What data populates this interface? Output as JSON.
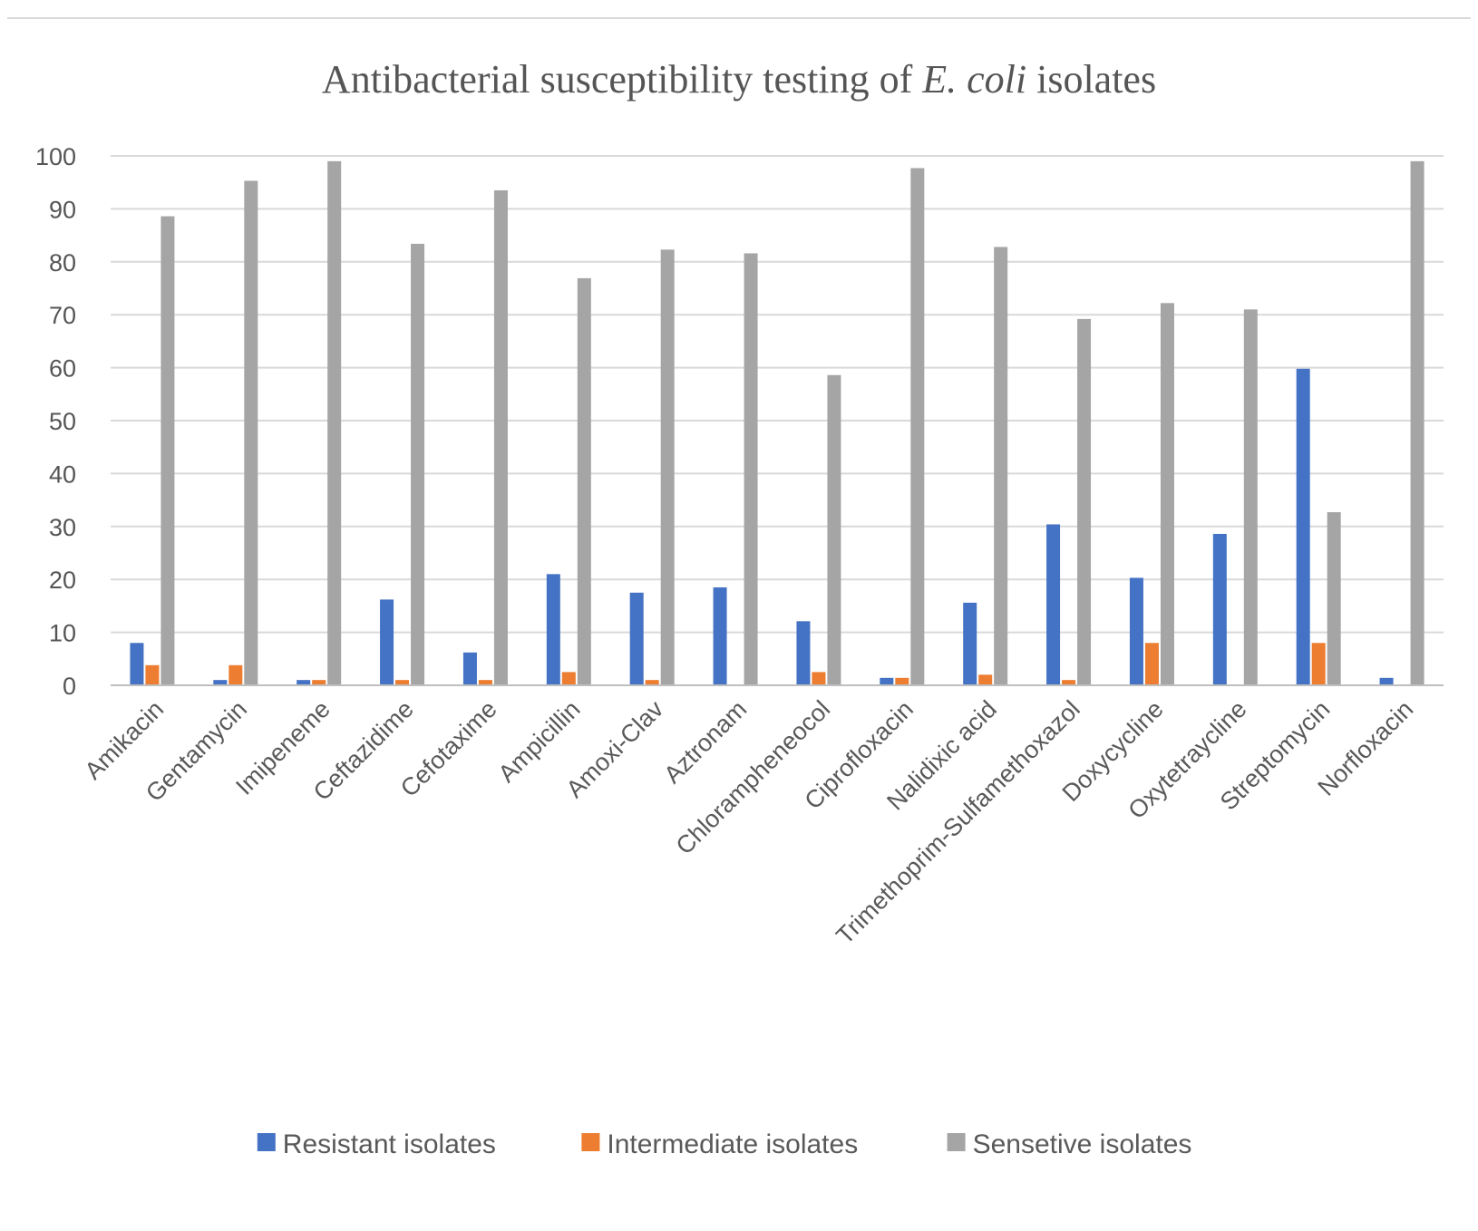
{
  "chart_data": {
    "type": "bar",
    "title": "Antibacterial susceptibility testing of ",
    "title_italic": "E. coli",
    "title_suffix": " isolates",
    "xlabel": "",
    "ylabel": "",
    "ylim": [
      0,
      100
    ],
    "yticks": [
      0,
      10,
      20,
      30,
      40,
      50,
      60,
      70,
      80,
      90,
      100
    ],
    "grid": true,
    "legend_position": "bottom",
    "categories": [
      "Amikacin",
      "Gentamycin",
      "Imipeneme",
      "Ceftazidime",
      "Cefotaxime",
      "Ampicillin",
      "Amoxi-Clav",
      "Aztronam",
      "Chlorampheneocol",
      "Ciprofloxacin",
      "Nalidixic acid",
      "Trimethoprim-Sulfamethoxazol",
      "Doxycycline",
      "Oxytetraycline",
      "Streptomycin",
      "Norfloxacin"
    ],
    "series": [
      {
        "name": "Resistant isolates",
        "color": "#4472C4",
        "values": [
          8,
          1,
          1,
          16.2,
          6.2,
          21,
          17.5,
          18.5,
          12.1,
          1.4,
          15.6,
          30.4,
          20.3,
          28.6,
          59.8,
          1.4
        ]
      },
      {
        "name": "Intermediate isolates",
        "color": "#ED7D31",
        "values": [
          3.8,
          3.8,
          1,
          1,
          1,
          2.5,
          1,
          0,
          2.5,
          1.4,
          2,
          1,
          8,
          0,
          8,
          0
        ]
      },
      {
        "name": "Sensetive isolates",
        "color": "#A5A5A5",
        "values": [
          88.6,
          95.3,
          99,
          83.4,
          93.5,
          76.9,
          82.3,
          81.6,
          58.6,
          97.7,
          82.8,
          69.2,
          72.2,
          71,
          32.7,
          99
        ]
      }
    ]
  },
  "colors": {
    "gridline": "#d9d9d9",
    "axis": "#bfbfbf",
    "frame_line": "#d9d9d9"
  }
}
